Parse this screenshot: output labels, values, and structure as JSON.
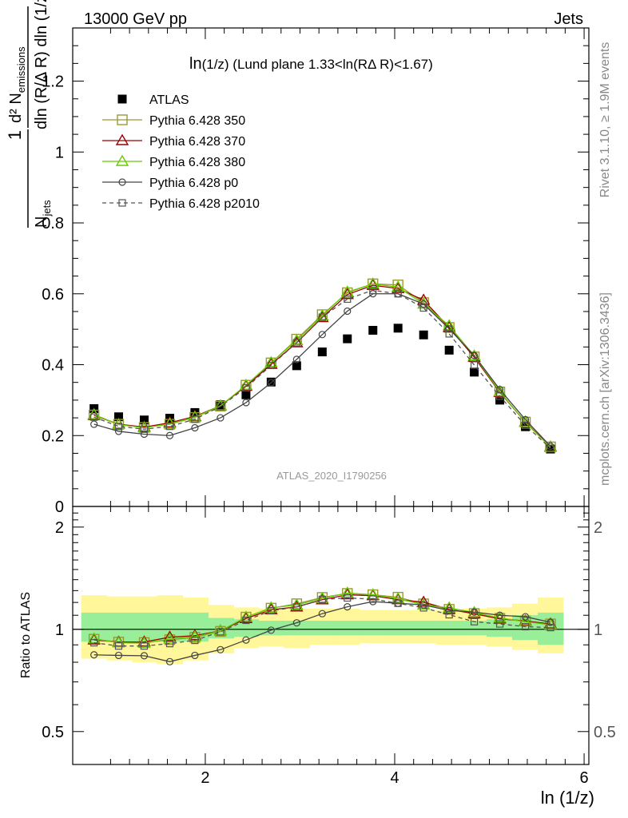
{
  "header": {
    "left": "13000 GeV pp",
    "right": "Jets",
    "side_rivet": "Rivet 3.1.10, ≥ 1.9M events",
    "side_mcplots": "mcplots.cern.ch [arXiv:1306.3436]",
    "watermark": "ATLAS_2020_I1790256"
  },
  "chart_data": [
    {
      "type": "scatter",
      "title": "ln(1/z) (Lund plane 1.33<ln(RΔ R)<1.67)",
      "title_main": "ln",
      "title_sub": "(1/z) (Lund plane 1.33<ln(RΔ R)<1.67)",
      "ylabel_numerator": "d² N",
      "ylabel_numerator_sub": "emissions",
      "ylabel_denominator": "dln (R/Δ R) dln (1/z)",
      "ylabel_prefix_num": "1",
      "ylabel_prefix_den": "N",
      "ylabel_prefix_den_sub": "jets",
      "xlabel": "ln (1/z)",
      "xlim": [
        0.6,
        6.05
      ],
      "ylim": [
        0,
        1.35
      ],
      "yticks": [
        0,
        0.2,
        0.4,
        0.6,
        0.8,
        1,
        1.2
      ],
      "ytick_labels": [
        "0",
        "0.2",
        "0.4",
        "0.6",
        "0.8",
        "1",
        "1.2"
      ],
      "x": [
        0.825,
        1.085,
        1.355,
        1.625,
        1.89,
        2.16,
        2.43,
        2.695,
        2.965,
        3.235,
        3.5,
        3.77,
        4.035,
        4.305,
        4.575,
        4.84,
        5.11,
        5.38,
        5.645
      ],
      "legend": {
        "placement": "top-left"
      },
      "series": [
        {
          "name": "ATLAS",
          "color": "#000000",
          "marker": "filled-square",
          "line": "none",
          "values": [
            0.276,
            0.253,
            0.244,
            0.249,
            0.265,
            0.287,
            0.315,
            0.351,
            0.397,
            0.436,
            0.473,
            0.497,
            0.503,
            0.484,
            0.441,
            0.379,
            0.3,
            0.225,
            0.162
          ]
        },
        {
          "name": "Pythia 6.428 350",
          "color": "#999933",
          "marker": "open-square",
          "line": "solid",
          "values": [
            0.258,
            0.232,
            0.223,
            0.232,
            0.251,
            0.283,
            0.342,
            0.405,
            0.472,
            0.541,
            0.603,
            0.628,
            0.625,
            0.575,
            0.505,
            0.422,
            0.323,
            0.238,
            0.168
          ]
        },
        {
          "name": "Pythia 6.428 370",
          "color": "#990000",
          "marker": "open-triangle",
          "line": "solid",
          "values": [
            0.257,
            0.232,
            0.224,
            0.236,
            0.254,
            0.284,
            0.339,
            0.401,
            0.462,
            0.533,
            0.598,
            0.624,
            0.615,
            0.582,
            0.505,
            0.421,
            0.322,
            0.238,
            0.168
          ]
        },
        {
          "name": "Pythia 6.428 380",
          "color": "#66cc00",
          "marker": "open-triangle",
          "line": "solid",
          "values": [
            0.259,
            0.231,
            0.222,
            0.233,
            0.252,
            0.284,
            0.342,
            0.406,
            0.468,
            0.538,
            0.605,
            0.628,
            0.619,
            0.571,
            0.51,
            0.425,
            0.324,
            0.237,
            0.167
          ]
        },
        {
          "name": "Pythia 6.428 p0",
          "color": "#444444",
          "marker": "open-circle",
          "line": "solid",
          "values": [
            0.232,
            0.212,
            0.204,
            0.2,
            0.222,
            0.25,
            0.293,
            0.349,
            0.415,
            0.485,
            0.551,
            0.6,
            0.6,
            0.571,
            0.501,
            0.426,
            0.33,
            0.245,
            0.17
          ]
        },
        {
          "name": "Pythia 6.428 p2010",
          "color": "#555555",
          "marker": "open-square-small",
          "line": "dashed",
          "values": [
            0.252,
            0.226,
            0.218,
            0.226,
            0.246,
            0.282,
            0.335,
            0.398,
            0.462,
            0.534,
            0.585,
            0.61,
            0.6,
            0.56,
            0.487,
            0.399,
            0.311,
            0.229,
            0.164
          ]
        }
      ]
    },
    {
      "type": "scatter",
      "ylabel": "Ratio to ATLAS",
      "xlabel": "ln (1/z)",
      "ylog": true,
      "xlim": [
        0.6,
        6.05
      ],
      "ylim": [
        0.4,
        2.3
      ],
      "yticks": [
        0.5,
        1,
        2
      ],
      "ytick_labels": [
        "0.5",
        "1",
        "2"
      ],
      "xticks": [
        2,
        4,
        6
      ],
      "xtick_labels": [
        "2",
        "4",
        "6"
      ],
      "band_edges": [
        0.69,
        0.96,
        1.23,
        1.49,
        1.76,
        2.03,
        2.3,
        2.56,
        2.83,
        3.1,
        3.37,
        3.63,
        3.9,
        4.17,
        4.44,
        4.71,
        4.97,
        5.24,
        5.51,
        5.78
      ],
      "band_yellow_low": [
        0.82,
        0.81,
        0.8,
        0.79,
        0.81,
        0.85,
        0.88,
        0.89,
        0.88,
        0.9,
        0.9,
        0.91,
        0.91,
        0.91,
        0.9,
        0.9,
        0.89,
        0.87,
        0.85,
        0.82
      ],
      "band_yellow_high": [
        1.26,
        1.25,
        1.25,
        1.26,
        1.24,
        1.18,
        1.16,
        1.15,
        1.15,
        1.15,
        1.15,
        1.14,
        1.14,
        1.14,
        1.14,
        1.15,
        1.16,
        1.19,
        1.24,
        1.27
      ],
      "band_green_low": [
        0.92,
        0.92,
        0.92,
        0.92,
        0.92,
        0.94,
        0.95,
        0.96,
        0.96,
        0.96,
        0.96,
        0.96,
        0.96,
        0.96,
        0.96,
        0.96,
        0.95,
        0.93,
        0.9,
        0.92
      ],
      "band_green_high": [
        1.12,
        1.12,
        1.12,
        1.12,
        1.12,
        1.08,
        1.07,
        1.06,
        1.06,
        1.06,
        1.06,
        1.06,
        1.06,
        1.06,
        1.06,
        1.06,
        1.07,
        1.1,
        1.12,
        1.12
      ],
      "series": [
        {
          "name": "Pythia 6.428 350",
          "values": [
            0.935,
            0.917,
            0.914,
            0.932,
            0.947,
            0.986,
            1.086,
            1.154,
            1.189,
            1.241,
            1.275,
            1.264,
            1.243,
            1.188,
            1.145,
            1.113,
            1.077,
            1.058,
            1.037
          ]
        },
        {
          "name": "Pythia 6.428 370",
          "values": [
            0.931,
            0.917,
            0.918,
            0.948,
            0.958,
            0.99,
            1.076,
            1.142,
            1.164,
            1.222,
            1.264,
            1.256,
            1.223,
            1.202,
            1.145,
            1.111,
            1.073,
            1.058,
            1.037
          ]
        },
        {
          "name": "Pythia 6.428 380",
          "values": [
            0.938,
            0.913,
            0.91,
            0.936,
            0.951,
            0.99,
            1.086,
            1.157,
            1.179,
            1.234,
            1.279,
            1.264,
            1.231,
            1.18,
            1.156,
            1.121,
            1.08,
            1.053,
            1.031
          ]
        },
        {
          "name": "Pythia 6.428 p0",
          "values": [
            0.841,
            0.838,
            0.836,
            0.803,
            0.838,
            0.871,
            0.93,
            0.994,
            1.045,
            1.112,
            1.165,
            1.207,
            1.193,
            1.18,
            1.136,
            1.124,
            1.1,
            1.089,
            1.049
          ]
        },
        {
          "name": "Pythia 6.428 p2010",
          "values": [
            0.913,
            0.893,
            0.893,
            0.908,
            0.928,
            0.983,
            1.063,
            1.134,
            1.164,
            1.225,
            1.237,
            1.227,
            1.193,
            1.157,
            1.104,
            1.053,
            1.037,
            1.018,
            1.012
          ]
        }
      ]
    }
  ]
}
